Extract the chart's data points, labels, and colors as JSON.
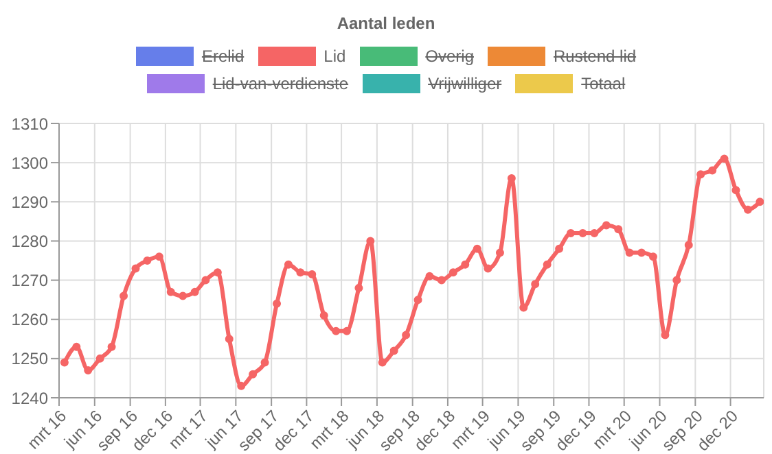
{
  "chart_data": {
    "type": "line",
    "title": "Aantal leden",
    "x": [
      "2016-03-15",
      "2016-04-15",
      "2016-05-15",
      "2016-06-15",
      "2016-07-15",
      "2016-08-15",
      "2016-09-15",
      "2016-10-15",
      "2016-11-15",
      "2016-12-15",
      "2017-01-15",
      "2017-02-15",
      "2017-03-15",
      "2017-04-15",
      "2017-05-15",
      "2017-06-15",
      "2017-07-15",
      "2017-08-15",
      "2017-09-15",
      "2017-10-15",
      "2017-11-15",
      "2017-12-15",
      "2018-01-15",
      "2018-02-15",
      "2018-03-15",
      "2018-04-15",
      "2018-05-15",
      "2018-06-15",
      "2018-07-15",
      "2018-08-15",
      "2018-09-15",
      "2018-10-15",
      "2018-11-15",
      "2018-12-15",
      "2019-01-15",
      "2019-02-15",
      "2019-03-15",
      "2019-04-15",
      "2019-05-15",
      "2019-06-15",
      "2019-07-15",
      "2019-08-15",
      "2019-09-15",
      "2019-10-15",
      "2019-11-15",
      "2019-12-15",
      "2020-01-15",
      "2020-02-15",
      "2020-03-15",
      "2020-04-15",
      "2020-05-15",
      "2020-06-15",
      "2020-07-15",
      "2020-08-15",
      "2020-09-15",
      "2020-10-15",
      "2020-11-15",
      "2020-12-15",
      "2021-01-15",
      "2021-02-15"
    ],
    "series": [
      {
        "name": "Erelid",
        "color": "#667eea",
        "values": [
          null,
          null,
          null,
          null,
          null,
          null,
          null,
          null,
          null,
          null,
          null,
          null,
          null,
          null,
          null,
          null,
          null,
          null,
          null,
          null,
          null,
          null,
          null,
          null,
          null,
          null,
          null,
          null,
          null,
          null,
          null,
          null,
          null,
          null,
          null,
          null,
          null,
          null,
          null,
          null,
          null,
          null,
          null,
          null,
          null,
          null,
          null,
          null,
          null,
          null,
          null,
          null,
          null,
          null,
          null,
          null,
          null,
          null,
          null,
          null
        ]
      },
      {
        "name": "Lid",
        "color": "#f56565",
        "values": [
          1249,
          1253,
          1247,
          1250,
          1253,
          1266,
          1273,
          1275,
          1276,
          1267,
          1266,
          1267,
          1270,
          1272,
          1255,
          1243,
          1246,
          1249,
          1264,
          1274,
          1272,
          1271.5,
          1261,
          1257,
          1257,
          1268,
          1280,
          1249,
          1252,
          1256,
          1265,
          1271,
          1270,
          1272,
          1274,
          1278,
          1273,
          1277,
          1296,
          1263,
          1269,
          1274,
          1278,
          1282,
          1282,
          1282,
          1284,
          1283,
          1277,
          1277,
          1276,
          1256,
          1270,
          1279,
          1297,
          1298,
          1301,
          1293,
          1288,
          1290
        ]
      },
      {
        "name": "Overig",
        "color": "#48bb78",
        "values": [
          null,
          null,
          null,
          null,
          null,
          null,
          null,
          null,
          null,
          null,
          null,
          null,
          null,
          null,
          null,
          null,
          null,
          null,
          null,
          null,
          null,
          null,
          null,
          null,
          null,
          null,
          null,
          null,
          null,
          null,
          null,
          null,
          null,
          null,
          null,
          null,
          null,
          null,
          null,
          null,
          null,
          null,
          null,
          null,
          null,
          null,
          null,
          null,
          null,
          null,
          null,
          null,
          null,
          null,
          null,
          null,
          null,
          null,
          null,
          null
        ]
      },
      {
        "name": "Rustend lid",
        "color": "#ed8936",
        "values": [
          null,
          null,
          null,
          null,
          null,
          null,
          null,
          null,
          null,
          null,
          null,
          null,
          null,
          null,
          null,
          null,
          null,
          null,
          null,
          null,
          null,
          null,
          null,
          null,
          null,
          null,
          null,
          null,
          null,
          null,
          null,
          null,
          null,
          null,
          null,
          null,
          null,
          null,
          null,
          null,
          null,
          null,
          null,
          null,
          null,
          null,
          null,
          null,
          null,
          null,
          null,
          null,
          null,
          null,
          null,
          null,
          null,
          null,
          null,
          null
        ]
      },
      {
        "name": "Lid-van-verdienste",
        "color": "#9f7aea",
        "values": [
          null,
          null,
          null,
          null,
          null,
          null,
          null,
          null,
          null,
          null,
          null,
          null,
          null,
          null,
          null,
          null,
          null,
          null,
          null,
          null,
          null,
          null,
          null,
          null,
          null,
          null,
          null,
          null,
          null,
          null,
          null,
          null,
          null,
          null,
          null,
          null,
          null,
          null,
          null,
          null,
          null,
          null,
          null,
          null,
          null,
          null,
          null,
          null,
          null,
          null,
          null,
          null,
          null,
          null,
          null,
          null,
          null,
          null,
          null,
          null
        ]
      },
      {
        "name": "Vrijwilliger",
        "color": "#38b2ac",
        "values": [
          null,
          null,
          null,
          null,
          null,
          null,
          null,
          null,
          null,
          null,
          null,
          null,
          null,
          null,
          null,
          null,
          null,
          null,
          null,
          null,
          null,
          null,
          null,
          null,
          null,
          null,
          null,
          null,
          null,
          null,
          null,
          null,
          null,
          null,
          null,
          null,
          null,
          null,
          null,
          null,
          null,
          null,
          null,
          null,
          null,
          null,
          null,
          null,
          null,
          null,
          null,
          null,
          null,
          null,
          null,
          null,
          null,
          null,
          null,
          null
        ]
      },
      {
        "name": "Totaal",
        "color": "#ecc94b",
        "values": [
          null,
          null,
          null,
          null,
          null,
          null,
          null,
          null,
          null,
          null,
          null,
          null,
          null,
          null,
          null,
          null,
          null,
          null,
          null,
          null,
          null,
          null,
          null,
          null,
          null,
          null,
          null,
          null,
          null,
          null,
          null,
          null,
          null,
          null,
          null,
          null,
          null,
          null,
          null,
          null,
          null,
          null,
          null,
          null,
          null,
          null,
          null,
          null,
          null,
          null,
          null,
          null,
          null,
          null,
          null,
          null,
          null,
          null,
          null,
          null
        ]
      }
    ],
    "xlim": [
      "2016-03-01",
      "2021-02-25"
    ],
    "xticks": [
      {
        "value": "2016-03-01",
        "label": "mrt 16"
      },
      {
        "value": "2016-06-01",
        "label": "jun 16"
      },
      {
        "value": "2016-09-01",
        "label": "sep 16"
      },
      {
        "value": "2016-12-01",
        "label": "dec 16"
      },
      {
        "value": "2017-03-01",
        "label": "mrt 17"
      },
      {
        "value": "2017-06-01",
        "label": "jun 17"
      },
      {
        "value": "2017-09-01",
        "label": "sep 17"
      },
      {
        "value": "2017-12-01",
        "label": "dec 17"
      },
      {
        "value": "2018-03-01",
        "label": "mrt 18"
      },
      {
        "value": "2018-06-01",
        "label": "jun 18"
      },
      {
        "value": "2018-09-01",
        "label": "sep 18"
      },
      {
        "value": "2018-12-01",
        "label": "dec 18"
      },
      {
        "value": "2019-03-01",
        "label": "mrt 19"
      },
      {
        "value": "2019-06-01",
        "label": "jun 19"
      },
      {
        "value": "2019-09-01",
        "label": "sep 19"
      },
      {
        "value": "2019-12-01",
        "label": "dec 19"
      },
      {
        "value": "2020-03-01",
        "label": "mrt 20"
      },
      {
        "value": "2020-06-01",
        "label": "jun 20"
      },
      {
        "value": "2020-09-01",
        "label": "sep 20"
      },
      {
        "value": "2020-12-01",
        "label": "dec 20"
      }
    ],
    "ylim": [
      1240,
      1310
    ],
    "yticks": [
      1240,
      1250,
      1260,
      1270,
      1280,
      1290,
      1300,
      1310
    ],
    "grid": true,
    "legend": "top",
    "marker": "circle",
    "line_style": "solid"
  }
}
